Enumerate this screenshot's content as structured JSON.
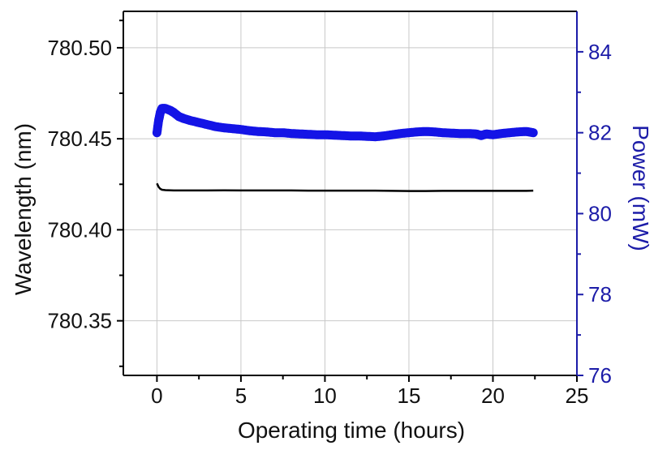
{
  "chart_data": {
    "type": "line",
    "title": "",
    "xlabel": "Operating time (hours)",
    "ylabel_left": "Wavelength (nm)",
    "ylabel_right": "Power (mW)",
    "xlim": [
      -2,
      25
    ],
    "ylim_left": [
      780.32,
      780.52
    ],
    "ylim_right": [
      76,
      85
    ],
    "grid": true,
    "x_ticks": [
      "0",
      "5",
      "10",
      "15",
      "20",
      "25"
    ],
    "x_tick_values": [
      0,
      5,
      10,
      15,
      20,
      25
    ],
    "y_left_ticks": [
      "780.35",
      "780.40",
      "780.45",
      "780.50"
    ],
    "y_left_tick_values": [
      780.35,
      780.4,
      780.45,
      780.5
    ],
    "y_right_ticks": [
      "76",
      "78",
      "80",
      "82",
      "84"
    ],
    "y_right_tick_values": [
      76,
      78,
      80,
      82,
      84
    ],
    "series": [
      {
        "axis": "left",
        "color": "#000000",
        "style": "line",
        "x": [
          0.0,
          0.1,
          0.2,
          0.3,
          0.5,
          1.0,
          2,
          3,
          4,
          5,
          6,
          7,
          8,
          9,
          10,
          11,
          12,
          13,
          14,
          15,
          16,
          17,
          18,
          19,
          20,
          21,
          22,
          22.4
        ],
        "y": [
          780.4255,
          780.4235,
          780.4225,
          780.422,
          780.4218,
          780.4216,
          780.4216,
          780.4216,
          780.4217,
          780.4216,
          780.4216,
          780.4216,
          780.4216,
          780.4215,
          780.4215,
          780.4215,
          780.4215,
          780.4215,
          780.4214,
          780.4213,
          780.4213,
          780.4214,
          780.4214,
          780.4214,
          780.4214,
          780.4214,
          780.4214,
          780.4215
        ]
      },
      {
        "axis": "right",
        "color": "#1414e6",
        "style": "markers",
        "x": [
          0.0,
          0.1,
          0.2,
          0.3,
          0.5,
          0.8,
          1.0,
          1.3,
          1.6,
          2,
          2.5,
          3,
          3.5,
          4,
          4.5,
          5,
          5.5,
          6,
          6.5,
          7,
          7.5,
          8,
          8.5,
          9,
          9.5,
          10,
          10.5,
          11,
          11.5,
          12,
          12.5,
          13,
          13.5,
          14,
          14.5,
          15,
          15.5,
          16,
          16.5,
          17,
          17.5,
          18,
          18.5,
          19,
          19.3,
          19.6,
          20,
          20.5,
          21,
          21.5,
          22,
          22.4
        ],
        "y": [
          82.0,
          82.3,
          82.5,
          82.6,
          82.6,
          82.55,
          82.5,
          82.4,
          82.35,
          82.3,
          82.25,
          82.2,
          82.15,
          82.12,
          82.1,
          82.08,
          82.05,
          82.03,
          82.02,
          82.0,
          82.0,
          81.98,
          81.97,
          81.96,
          81.95,
          81.95,
          81.94,
          81.93,
          81.92,
          81.92,
          81.91,
          81.9,
          81.92,
          81.95,
          81.98,
          82.0,
          82.02,
          82.03,
          82.02,
          82.0,
          81.99,
          81.98,
          81.98,
          81.97,
          81.93,
          81.97,
          81.95,
          81.98,
          82.0,
          82.02,
          82.03,
          82.0
        ]
      }
    ]
  }
}
